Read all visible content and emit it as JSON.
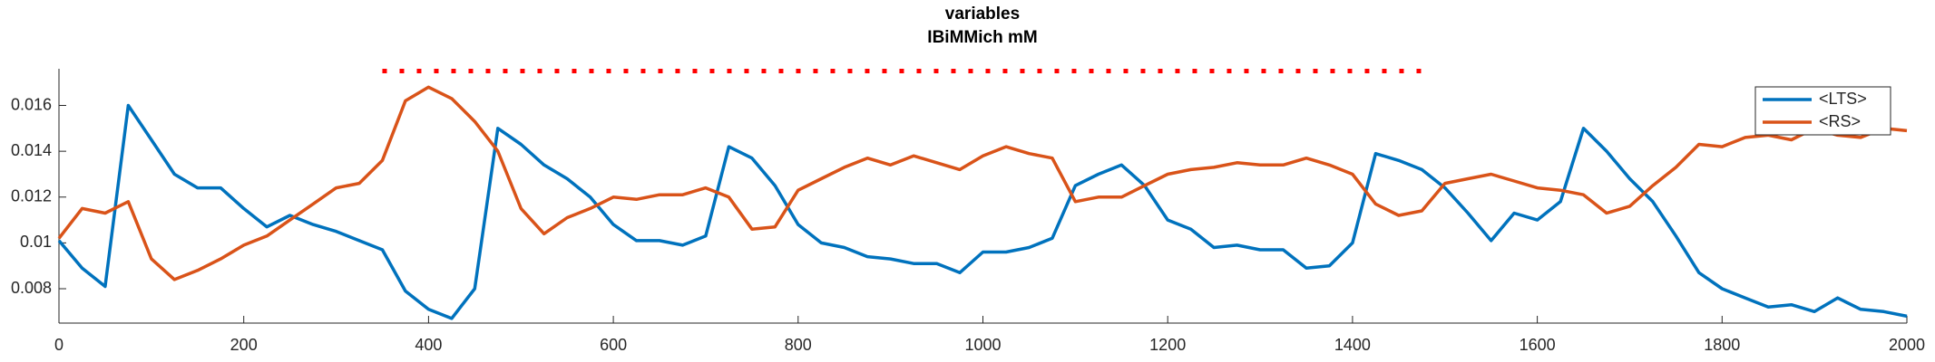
{
  "chart_data": {
    "type": "line",
    "title": "variables",
    "subtitle": "IBiMMich mM",
    "x": [
      0,
      25,
      50,
      75,
      100,
      125,
      150,
      175,
      200,
      225,
      250,
      275,
      300,
      325,
      350,
      375,
      400,
      425,
      450,
      475,
      500,
      525,
      550,
      575,
      600,
      625,
      650,
      675,
      700,
      725,
      750,
      775,
      800,
      825,
      850,
      875,
      900,
      925,
      950,
      975,
      1000,
      1025,
      1050,
      1075,
      1100,
      1125,
      1150,
      1175,
      1200,
      1225,
      1250,
      1275,
      1300,
      1325,
      1350,
      1375,
      1400,
      1425,
      1450,
      1475,
      1500,
      1525,
      1550,
      1575,
      1600,
      1625,
      1650,
      1675,
      1700,
      1725,
      1750,
      1775,
      1800,
      1825,
      1850,
      1875,
      1900,
      1925,
      1950,
      1975,
      2000
    ],
    "series": [
      {
        "name": "<LTS>",
        "color": "#0072bd",
        "values": [
          0.0101,
          0.0089,
          0.0081,
          0.016,
          0.0145,
          0.013,
          0.0124,
          0.0124,
          0.0115,
          0.0107,
          0.0112,
          0.0108,
          0.0105,
          0.0101,
          0.0097,
          0.0079,
          0.0071,
          0.0067,
          0.008,
          0.015,
          0.0143,
          0.0134,
          0.0128,
          0.012,
          0.0108,
          0.0101,
          0.0101,
          0.0099,
          0.0103,
          0.0142,
          0.0137,
          0.0125,
          0.0108,
          0.01,
          0.0098,
          0.0094,
          0.0093,
          0.0091,
          0.0091,
          0.0087,
          0.0096,
          0.0096,
          0.0098,
          0.0102,
          0.0125,
          0.013,
          0.0134,
          0.0125,
          0.011,
          0.0106,
          0.0098,
          0.0099,
          0.0097,
          0.0097,
          0.0089,
          0.009,
          0.01,
          0.0139,
          0.0136,
          0.0132,
          0.0124,
          0.0113,
          0.0101,
          0.0113,
          0.011,
          0.0118,
          0.015,
          0.014,
          0.0128,
          0.0118,
          0.0103,
          0.0087,
          0.008,
          0.0076,
          0.0072,
          0.0073,
          0.007,
          0.0076,
          0.0071,
          0.007,
          0.0068
        ]
      },
      {
        "name": "<RS>",
        "color": "#d95319",
        "values": [
          0.0102,
          0.0115,
          0.0113,
          0.0118,
          0.0093,
          0.0084,
          0.0088,
          0.0093,
          0.0099,
          0.0103,
          0.011,
          0.0117,
          0.0124,
          0.0126,
          0.0136,
          0.0162,
          0.0168,
          0.0163,
          0.0153,
          0.014,
          0.0115,
          0.0104,
          0.0111,
          0.0115,
          0.012,
          0.0119,
          0.0121,
          0.0121,
          0.0124,
          0.012,
          0.0106,
          0.0107,
          0.0123,
          0.0128,
          0.0133,
          0.0137,
          0.0134,
          0.0138,
          0.0135,
          0.0132,
          0.0138,
          0.0142,
          0.0139,
          0.0137,
          0.0118,
          0.012,
          0.012,
          0.0125,
          0.013,
          0.0132,
          0.0133,
          0.0135,
          0.0134,
          0.0134,
          0.0137,
          0.0134,
          0.013,
          0.0117,
          0.0112,
          0.0114,
          0.0126,
          0.0128,
          0.013,
          0.0127,
          0.0124,
          0.0123,
          0.0121,
          0.0113,
          0.0116,
          0.0125,
          0.0133,
          0.0143,
          0.0142,
          0.0146,
          0.0147,
          0.0145,
          0.015,
          0.0147,
          0.0146,
          0.015,
          0.0149
        ]
      }
    ],
    "marker_band": {
      "x": [
        350,
        1480
      ],
      "y": 0.0175,
      "color": "#ff0000"
    },
    "xlim": [
      0,
      2000
    ],
    "xticks": [
      0,
      200,
      400,
      600,
      800,
      1000,
      1200,
      1400,
      1600,
      1800,
      2000
    ],
    "ylim": [
      0.0065,
      0.0176
    ],
    "yticks": [
      0.008,
      0.01,
      0.012,
      0.014,
      0.016
    ],
    "legend": "top-right"
  }
}
